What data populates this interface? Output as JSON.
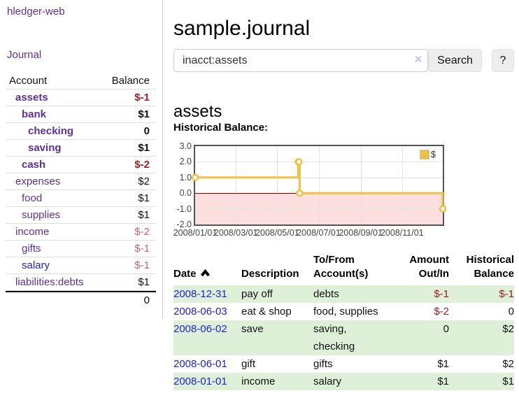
{
  "app": {
    "brand": "hledger-web",
    "nav_journal": "Journal"
  },
  "sidebar": {
    "header": {
      "account": "Account",
      "balance": "Balance"
    },
    "accounts": [
      {
        "name": "assets",
        "depth": 1,
        "bold": true,
        "balance": "$-1",
        "neg": "strong"
      },
      {
        "name": "bank",
        "depth": 2,
        "bold": true,
        "balance": "$1"
      },
      {
        "name": "checking",
        "depth": 3,
        "bold": true,
        "balance": "0"
      },
      {
        "name": "saving",
        "depth": 3,
        "bold": true,
        "balance": "$1"
      },
      {
        "name": "cash",
        "depth": 2,
        "bold": true,
        "balance": "$-2",
        "neg": "strong"
      },
      {
        "name": "expenses",
        "depth": 1,
        "bold": false,
        "balance": "$2"
      },
      {
        "name": "food",
        "depth": 2,
        "bold": false,
        "balance": "$1"
      },
      {
        "name": "supplies",
        "depth": 2,
        "bold": false,
        "balance": "$1"
      },
      {
        "name": "income",
        "depth": 1,
        "bold": false,
        "balance": "$-2",
        "neg": "soft"
      },
      {
        "name": "gifts",
        "depth": 2,
        "bold": false,
        "balance": "$-1",
        "neg": "soft"
      },
      {
        "name": "salary",
        "depth": 2,
        "bold": false,
        "balance": "$-1",
        "neg": "soft",
        "blue": true
      },
      {
        "name": "liabilities:debts",
        "depth": 1,
        "bold": false,
        "balance": "$1"
      }
    ],
    "total": "0"
  },
  "header": {
    "title": "sample.journal"
  },
  "search": {
    "value": "inacct:assets",
    "clear_icon": "×",
    "button": "Search",
    "help_button": "?"
  },
  "account_page": {
    "heading": "assets",
    "chart_label": "Historical Balance:"
  },
  "chart_data": {
    "type": "line",
    "title": "Historical Balance:",
    "style": "step",
    "series": [
      {
        "name": "$",
        "color": "#edc240",
        "points": [
          [
            "2008-01-01",
            1
          ],
          [
            "2008-06-01",
            2
          ],
          [
            "2008-06-02",
            2
          ],
          [
            "2008-06-03",
            0
          ],
          [
            "2008-12-31",
            -1
          ]
        ]
      }
    ],
    "x_range": [
      "2008-01-01",
      "2008-12-31"
    ],
    "ylim": [
      -2,
      3
    ],
    "yticks": [
      "3.0",
      "2.0",
      "1.0",
      "0.0",
      "-1.0",
      "-2.0"
    ],
    "xticks": [
      "2008/01/01",
      "2008/03/01",
      "2008/05/01",
      "2008/07/01",
      "2008/09/01",
      "2008/11/01"
    ],
    "grid": true,
    "legend_position": "top-right",
    "legend_label": "$",
    "negative_region_color": "#fddfe0",
    "zero_line_color": "#8b0000"
  },
  "register": {
    "headers": {
      "date": "Date",
      "description": "Description",
      "accounts_l1": "To/From",
      "accounts_l2": "Account(s)",
      "amount_l1": "Amount",
      "amount_l2": "Out/In",
      "balance_l1": "Historical",
      "balance_l2": "Balance"
    },
    "sort": {
      "column": "date",
      "direction": "asc"
    },
    "rows": [
      {
        "date": "2008-12-31",
        "description": "pay off",
        "accounts": [
          "debts"
        ],
        "amount": "$-1",
        "amount_neg": true,
        "balance": "$-1",
        "balance_neg": true
      },
      {
        "date": "2008-06-03",
        "description": "eat & shop",
        "accounts": [
          "food, supplies"
        ],
        "amount": "$-2",
        "amount_neg": true,
        "balance": "0",
        "balance_neg": false
      },
      {
        "date": "2008-06-02",
        "description": "save",
        "accounts": [
          "saving,",
          "checking"
        ],
        "amount": "0",
        "amount_neg": false,
        "balance": "$2",
        "balance_neg": false
      },
      {
        "date": "2008-06-01",
        "description": "gift",
        "accounts": [
          "gifts"
        ],
        "amount": "$1",
        "amount_neg": false,
        "balance": "$2",
        "balance_neg": false
      },
      {
        "date": "2008-01-01",
        "description": "income",
        "accounts": [
          "salary"
        ],
        "amount": "$1",
        "amount_neg": false,
        "balance": "$1",
        "balance_neg": false
      }
    ]
  }
}
